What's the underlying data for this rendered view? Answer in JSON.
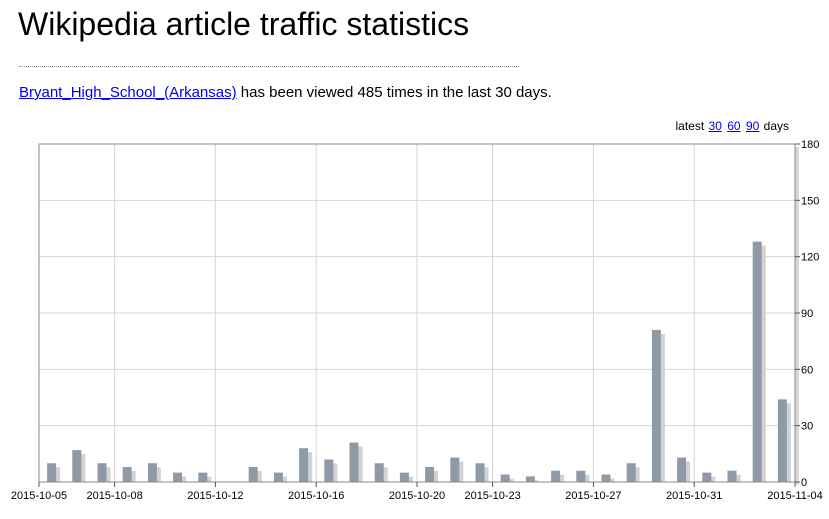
{
  "page": {
    "title": "Wikipedia article traffic statistics",
    "article_link": "Bryant_High_School_(Arkansas)",
    "summary_text": " has been viewed 485 times in the last 30 days."
  },
  "range_select": {
    "prefix": "latest",
    "options": [
      "30",
      "60",
      "90"
    ],
    "suffix": "days"
  },
  "chart_data": {
    "type": "bar",
    "categories": [
      "2015-10-05",
      "2015-10-06",
      "2015-10-07",
      "2015-10-08",
      "2015-10-09",
      "2015-10-10",
      "2015-10-11",
      "2015-10-12",
      "2015-10-13",
      "2015-10-14",
      "2015-10-15",
      "2015-10-16",
      "2015-10-17",
      "2015-10-18",
      "2015-10-19",
      "2015-10-20",
      "2015-10-21",
      "2015-10-22",
      "2015-10-23",
      "2015-10-24",
      "2015-10-25",
      "2015-10-26",
      "2015-10-27",
      "2015-10-28",
      "2015-10-29",
      "2015-10-30",
      "2015-10-31",
      "2015-11-01",
      "2015-11-02",
      "2015-11-03",
      "2015-11-04"
    ],
    "values": [
      10,
      17,
      10,
      8,
      10,
      5,
      5,
      0,
      8,
      5,
      18,
      12,
      21,
      10,
      5,
      8,
      13,
      10,
      4,
      3,
      6,
      6,
      4,
      10,
      81,
      13,
      5,
      6,
      128,
      44,
      0
    ],
    "x_tick_labels": [
      "2015-10-05",
      "2015-10-08",
      "2015-10-12",
      "2015-10-16",
      "2015-10-20",
      "2015-10-23",
      "2015-10-27",
      "2015-10-31",
      "2015-11-04"
    ],
    "y_tick_labels": [
      "0",
      "30",
      "60",
      "90",
      "120",
      "150",
      "180"
    ],
    "ylim": [
      0,
      180
    ],
    "y_axis_side": "right",
    "grid": true,
    "bar_color": "#9099a6",
    "shadow_color": "#d2d2d2"
  }
}
